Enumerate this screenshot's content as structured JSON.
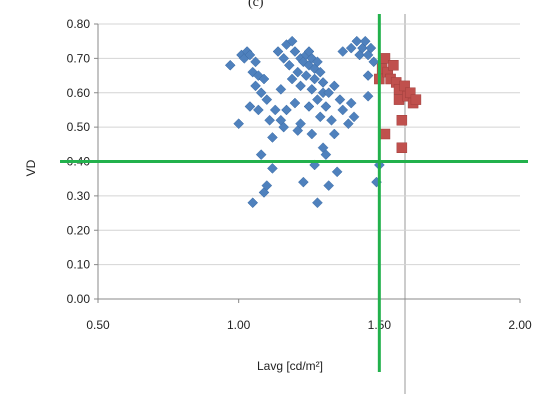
{
  "panel_label": "(c)",
  "chart_data": {
    "type": "scatter",
    "title": "",
    "xlabel": "Lavg [cd/m²]",
    "ylabel": "VD",
    "xlim": [
      0.5,
      2.0
    ],
    "ylim": [
      0.0,
      0.8
    ],
    "xticks": [
      "0.50",
      "1.00",
      "1.50",
      "2.00"
    ],
    "yticks": [
      "0.00",
      "0.10",
      "0.20",
      "0.30",
      "0.40",
      "0.50",
      "0.60",
      "0.70",
      "0.80"
    ],
    "grid": "horizontal",
    "reference_lines": {
      "x": 1.5,
      "y": 0.4,
      "color": "#22b14c"
    },
    "series": [
      {
        "marker": "diamond",
        "color": "#4f81bd",
        "points": [
          [
            0.97,
            0.68
          ],
          [
            1.0,
            0.51
          ],
          [
            1.01,
            0.71
          ],
          [
            1.02,
            0.7
          ],
          [
            1.03,
            0.72
          ],
          [
            1.04,
            0.71
          ],
          [
            1.04,
            0.56
          ],
          [
            1.05,
            0.66
          ],
          [
            1.05,
            0.28
          ],
          [
            1.06,
            0.62
          ],
          [
            1.06,
            0.69
          ],
          [
            1.07,
            0.55
          ],
          [
            1.07,
            0.65
          ],
          [
            1.08,
            0.6
          ],
          [
            1.08,
            0.42
          ],
          [
            1.09,
            0.31
          ],
          [
            1.09,
            0.64
          ],
          [
            1.1,
            0.33
          ],
          [
            1.1,
            0.58
          ],
          [
            1.11,
            0.52
          ],
          [
            1.12,
            0.47
          ],
          [
            1.12,
            0.38
          ],
          [
            1.13,
            0.55
          ],
          [
            1.14,
            0.72
          ],
          [
            1.15,
            0.52
          ],
          [
            1.15,
            0.61
          ],
          [
            1.16,
            0.5
          ],
          [
            1.16,
            0.7
          ],
          [
            1.17,
            0.74
          ],
          [
            1.17,
            0.55
          ],
          [
            1.18,
            0.68
          ],
          [
            1.19,
            0.64
          ],
          [
            1.19,
            0.75
          ],
          [
            1.2,
            0.72
          ],
          [
            1.2,
            0.57
          ],
          [
            1.21,
            0.49
          ],
          [
            1.21,
            0.66
          ],
          [
            1.22,
            0.7
          ],
          [
            1.22,
            0.62
          ],
          [
            1.22,
            0.51
          ],
          [
            1.23,
            0.69
          ],
          [
            1.23,
            0.34
          ],
          [
            1.24,
            0.71
          ],
          [
            1.24,
            0.65
          ],
          [
            1.25,
            0.72
          ],
          [
            1.25,
            0.68
          ],
          [
            1.25,
            0.56
          ],
          [
            1.26,
            0.7
          ],
          [
            1.26,
            0.61
          ],
          [
            1.26,
            0.48
          ],
          [
            1.27,
            0.67
          ],
          [
            1.27,
            0.64
          ],
          [
            1.27,
            0.39
          ],
          [
            1.28,
            0.28
          ],
          [
            1.28,
            0.58
          ],
          [
            1.28,
            0.69
          ],
          [
            1.29,
            0.53
          ],
          [
            1.29,
            0.66
          ],
          [
            1.3,
            0.63
          ],
          [
            1.3,
            0.44
          ],
          [
            1.3,
            0.6
          ],
          [
            1.31,
            0.42
          ],
          [
            1.31,
            0.56
          ],
          [
            1.32,
            0.33
          ],
          [
            1.32,
            0.6
          ],
          [
            1.33,
            0.52
          ],
          [
            1.34,
            0.62
          ],
          [
            1.34,
            0.48
          ],
          [
            1.35,
            0.37
          ],
          [
            1.36,
            0.58
          ],
          [
            1.37,
            0.55
          ],
          [
            1.37,
            0.72
          ],
          [
            1.39,
            0.51
          ],
          [
            1.4,
            0.57
          ],
          [
            1.4,
            0.73
          ],
          [
            1.41,
            0.53
          ],
          [
            1.42,
            0.75
          ],
          [
            1.43,
            0.71
          ],
          [
            1.44,
            0.73
          ],
          [
            1.45,
            0.75
          ],
          [
            1.46,
            0.71
          ],
          [
            1.46,
            0.65
          ],
          [
            1.46,
            0.59
          ],
          [
            1.47,
            0.73
          ],
          [
            1.48,
            0.69
          ],
          [
            1.49,
            0.34
          ],
          [
            1.5,
            0.39
          ]
        ]
      },
      {
        "marker": "square",
        "color": "#c0504d",
        "points": [
          [
            1.5,
            0.64
          ],
          [
            1.51,
            0.67
          ],
          [
            1.52,
            0.7
          ],
          [
            1.52,
            0.48
          ],
          [
            1.53,
            0.66
          ],
          [
            1.54,
            0.64
          ],
          [
            1.55,
            0.68
          ],
          [
            1.56,
            0.63
          ],
          [
            1.57,
            0.58
          ],
          [
            1.57,
            0.61
          ],
          [
            1.58,
            0.52
          ],
          [
            1.58,
            0.44
          ],
          [
            1.59,
            0.62
          ],
          [
            1.6,
            0.59
          ],
          [
            1.61,
            0.6
          ],
          [
            1.62,
            0.57
          ],
          [
            1.63,
            0.58
          ]
        ]
      }
    ]
  }
}
